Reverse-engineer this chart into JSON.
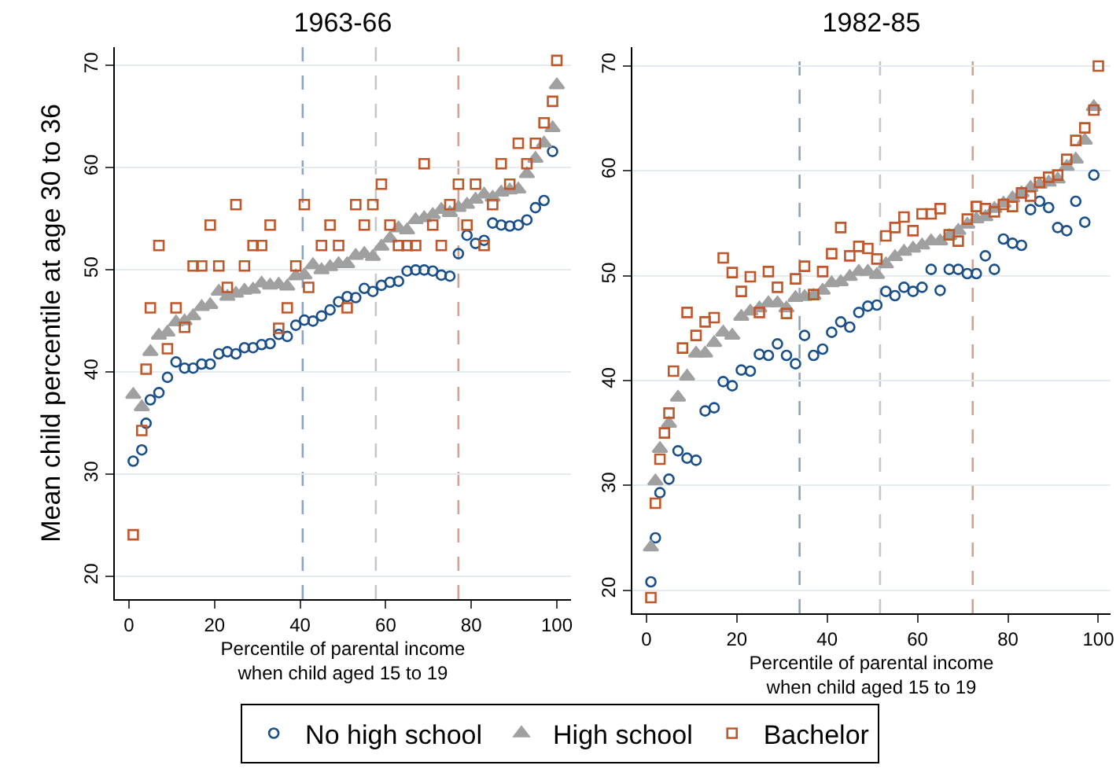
{
  "chart_data": [
    {
      "type": "scatter",
      "title": "1963-66",
      "xlabel": "Percentile of parental income\nwhen child aged 15 to 19",
      "ylabel": "Mean child percentile at age 30 to 36",
      "xlim": [
        -3.3,
        103.3
      ],
      "xticks": [
        0,
        20,
        40,
        60,
        80,
        100
      ],
      "ylim": [
        17.8,
        71.8
      ],
      "yticks": [
        20,
        30,
        40,
        50,
        60,
        70
      ],
      "grid": "y",
      "legend": "bottom",
      "ref_lines": [
        {
          "axis": "x",
          "value": 40.6,
          "color": "#8aa4c4",
          "line_style": "dashed"
        },
        {
          "axis": "x",
          "value": 57.7,
          "color": "#c8c8c8",
          "line_style": "dashed"
        },
        {
          "axis": "x",
          "value": 77,
          "color": "#d4a090",
          "line_style": "dashed"
        }
      ],
      "series": [
        {
          "name": "No high school",
          "color": "#1a4f8a",
          "marker": "circle",
          "x": [
            1,
            3,
            4,
            5,
            7,
            9,
            11,
            13,
            15,
            17,
            19,
            21,
            23,
            25,
            27,
            29,
            31,
            33,
            35,
            37,
            39,
            41,
            43,
            45,
            47,
            49,
            51,
            53,
            55,
            57,
            59,
            61,
            63,
            65,
            67,
            69,
            71,
            73,
            75,
            77,
            79,
            81,
            83,
            85,
            87,
            89,
            91,
            93,
            95,
            97,
            99
          ],
          "values": [
            31.3,
            32.4,
            35,
            37.3,
            38,
            39.5,
            41,
            40.4,
            40.4,
            40.8,
            40.8,
            41.8,
            42,
            41.8,
            42.4,
            42.4,
            42.7,
            42.8,
            43.7,
            43.5,
            44.6,
            45.1,
            45,
            45.5,
            46.1,
            46.9,
            47.4,
            47.3,
            48.2,
            47.9,
            48.5,
            48.8,
            48.9,
            49.9,
            50,
            50,
            49.9,
            49.5,
            49.4,
            51.6,
            53.4,
            52.6,
            52.9,
            54.6,
            54.4,
            54.3,
            54.4,
            54.9,
            56.1,
            56.8,
            61.6
          ]
        },
        {
          "name": "High school",
          "color": "#a0a0a0",
          "marker": "triangle",
          "x": [
            1,
            3,
            5,
            7,
            9,
            11,
            13,
            15,
            17,
            19,
            21,
            23,
            25,
            27,
            29,
            31,
            33,
            35,
            37,
            39,
            41,
            43,
            45,
            47,
            49,
            51,
            53,
            55,
            57,
            59,
            61,
            63,
            65,
            67,
            69,
            71,
            73,
            75,
            77,
            79,
            81,
            83,
            85,
            87,
            89,
            91,
            93,
            95,
            97,
            99,
            100
          ],
          "values": [
            37.8,
            36.6,
            42,
            43.6,
            43.9,
            44.9,
            45,
            45.5,
            46.4,
            46.6,
            47.9,
            47.4,
            47.7,
            48,
            48.1,
            48.7,
            48.5,
            48.6,
            48.4,
            49.4,
            49.5,
            50.5,
            50,
            50.3,
            50.6,
            50.6,
            51.4,
            51.6,
            51.3,
            52.3,
            53.1,
            54.1,
            53.9,
            54.9,
            55.1,
            55.4,
            55.9,
            55.6,
            56.1,
            56.4,
            56.9,
            57.4,
            57.1,
            57.6,
            57.8,
            57.9,
            59.4,
            60.9,
            62.4,
            63.9,
            68.1
          ]
        },
        {
          "name": "Bachelor",
          "color": "#c0572b",
          "marker": "square",
          "x": [
            1,
            3,
            4,
            5,
            7,
            9,
            11,
            13,
            15,
            17,
            19,
            21,
            23,
            25,
            27,
            29,
            31,
            33,
            35,
            37,
            39,
            41,
            42,
            45,
            47,
            49,
            51,
            53,
            55,
            57,
            59,
            61,
            63,
            65,
            67,
            69,
            71,
            73,
            75,
            77,
            79,
            81,
            83,
            85,
            87,
            89,
            91,
            93,
            95,
            97,
            99,
            100
          ],
          "values": [
            24.1,
            34.3,
            40.3,
            46.3,
            52.4,
            42.3,
            46.3,
            44.4,
            50.4,
            50.4,
            54.4,
            50.4,
            48.3,
            56.4,
            50.4,
            52.4,
            52.4,
            54.4,
            44.3,
            46.3,
            50.4,
            56.4,
            48.3,
            52.4,
            54.4,
            52.4,
            46.3,
            56.4,
            54.4,
            56.4,
            58.4,
            54.4,
            52.4,
            52.4,
            52.4,
            60.4,
            54.4,
            52.4,
            56.4,
            58.4,
            54.4,
            58.4,
            52.4,
            56.4,
            60.4,
            58.4,
            62.4,
            60.4,
            62.4,
            64.4,
            66.5,
            70.5
          ]
        }
      ]
    },
    {
      "type": "scatter",
      "title": "1982-85",
      "xlabel": "Percentile of parental income\nwhen child aged 15 to 19",
      "xlim": [
        -3.1,
        102.7
      ],
      "xticks": [
        0,
        20,
        40,
        60,
        80,
        100
      ],
      "ylim": [
        17.8,
        71.8
      ],
      "yticks": [
        20,
        30,
        40,
        50,
        60,
        70
      ],
      "grid": "y",
      "ref_lines": [
        {
          "axis": "x",
          "value": 33.9,
          "color": "#8aa4c4",
          "line_style": "dashed"
        },
        {
          "axis": "x",
          "value": 51.7,
          "color": "#c8c8c8",
          "line_style": "dashed"
        },
        {
          "axis": "x",
          "value": 72.2,
          "color": "#d4a090",
          "line_style": "dashed"
        }
      ],
      "series": [
        {
          "color": "#1a4f8a",
          "marker": "circle",
          "x": [
            1,
            2,
            3,
            5,
            7,
            9,
            11,
            13,
            15,
            17,
            19,
            21,
            23,
            25,
            27,
            29,
            31,
            33,
            35,
            37,
            39,
            41,
            43,
            45,
            47,
            49,
            51,
            53,
            55,
            57,
            59,
            61,
            63,
            65,
            67,
            69,
            71,
            73,
            75,
            77,
            79,
            81,
            83,
            85,
            87,
            89,
            91,
            93,
            95,
            97,
            99
          ],
          "values": [
            20.8,
            25,
            29.3,
            30.6,
            33.3,
            32.6,
            32.4,
            37.1,
            37.4,
            39.9,
            39.5,
            41,
            40.9,
            42.5,
            42.4,
            43.5,
            42.4,
            41.6,
            44.3,
            42.4,
            43,
            44.6,
            45.6,
            45.1,
            46.5,
            47.1,
            47.2,
            48.5,
            48.1,
            48.9,
            48.5,
            48.9,
            50.6,
            48.6,
            50.6,
            50.6,
            50.2,
            50.2,
            51.9,
            50.6,
            53.5,
            53.1,
            52.9,
            56.3,
            57.1,
            56.5,
            54.6,
            54.3,
            57.1,
            55.1,
            59.6
          ]
        },
        {
          "color": "#a0a0a0",
          "marker": "triangle",
          "x": [
            1,
            2,
            3,
            5,
            7,
            9,
            11,
            13,
            15,
            17,
            19,
            21,
            23,
            25,
            27,
            29,
            31,
            33,
            35,
            37,
            39,
            41,
            43,
            45,
            47,
            49,
            51,
            53,
            55,
            57,
            59,
            61,
            63,
            65,
            67,
            69,
            71,
            73,
            75,
            77,
            79,
            81,
            83,
            85,
            87,
            89,
            91,
            93,
            95,
            97,
            99
          ],
          "values": [
            24.1,
            30.4,
            33.5,
            35.9,
            38.4,
            40.4,
            42.6,
            42.6,
            43.6,
            44.6,
            44.3,
            46.1,
            46.6,
            46.9,
            47.4,
            47.4,
            46.9,
            47.9,
            48,
            48.1,
            48.6,
            49.3,
            49.4,
            49.9,
            50.4,
            50.4,
            50.1,
            51.1,
            51.8,
            52.3,
            52.6,
            52.9,
            53.3,
            53.3,
            53.8,
            54.3,
            54.9,
            55.4,
            55.6,
            56.4,
            56.9,
            57.4,
            57.9,
            58.4,
            58.7,
            58.9,
            59.2,
            60.4,
            61.1,
            62.9,
            66.1
          ]
        },
        {
          "color": "#c0572b",
          "marker": "square",
          "x": [
            1,
            2,
            3,
            4,
            5,
            6,
            8,
            9,
            11,
            13,
            15,
            17,
            19,
            21,
            23,
            25,
            27,
            29,
            31,
            33,
            35,
            37,
            39,
            41,
            43,
            45,
            47,
            49,
            51,
            53,
            55,
            57,
            59,
            61,
            63,
            65,
            67,
            69,
            71,
            73,
            75,
            77,
            79,
            81,
            83,
            85,
            87,
            89,
            91,
            93,
            95,
            97,
            99,
            100
          ],
          "values": [
            19.3,
            28.3,
            32.5,
            35,
            36.9,
            40.9,
            43.1,
            46.5,
            44.3,
            45.6,
            46,
            51.7,
            50.3,
            48.5,
            49.9,
            46.5,
            50.4,
            48.9,
            46.4,
            49.7,
            50.9,
            48.2,
            50.4,
            52.1,
            54.6,
            51.9,
            52.8,
            52.6,
            51.6,
            53.8,
            54.6,
            55.6,
            54.3,
            55.9,
            55.9,
            56.4,
            53.9,
            53.3,
            55.4,
            56.6,
            56.4,
            56.1,
            56.8,
            56.6,
            57.9,
            57.6,
            58.9,
            59.4,
            59.6,
            61.1,
            62.9,
            64.1,
            65.8,
            70
          ]
        }
      ]
    }
  ]
}
